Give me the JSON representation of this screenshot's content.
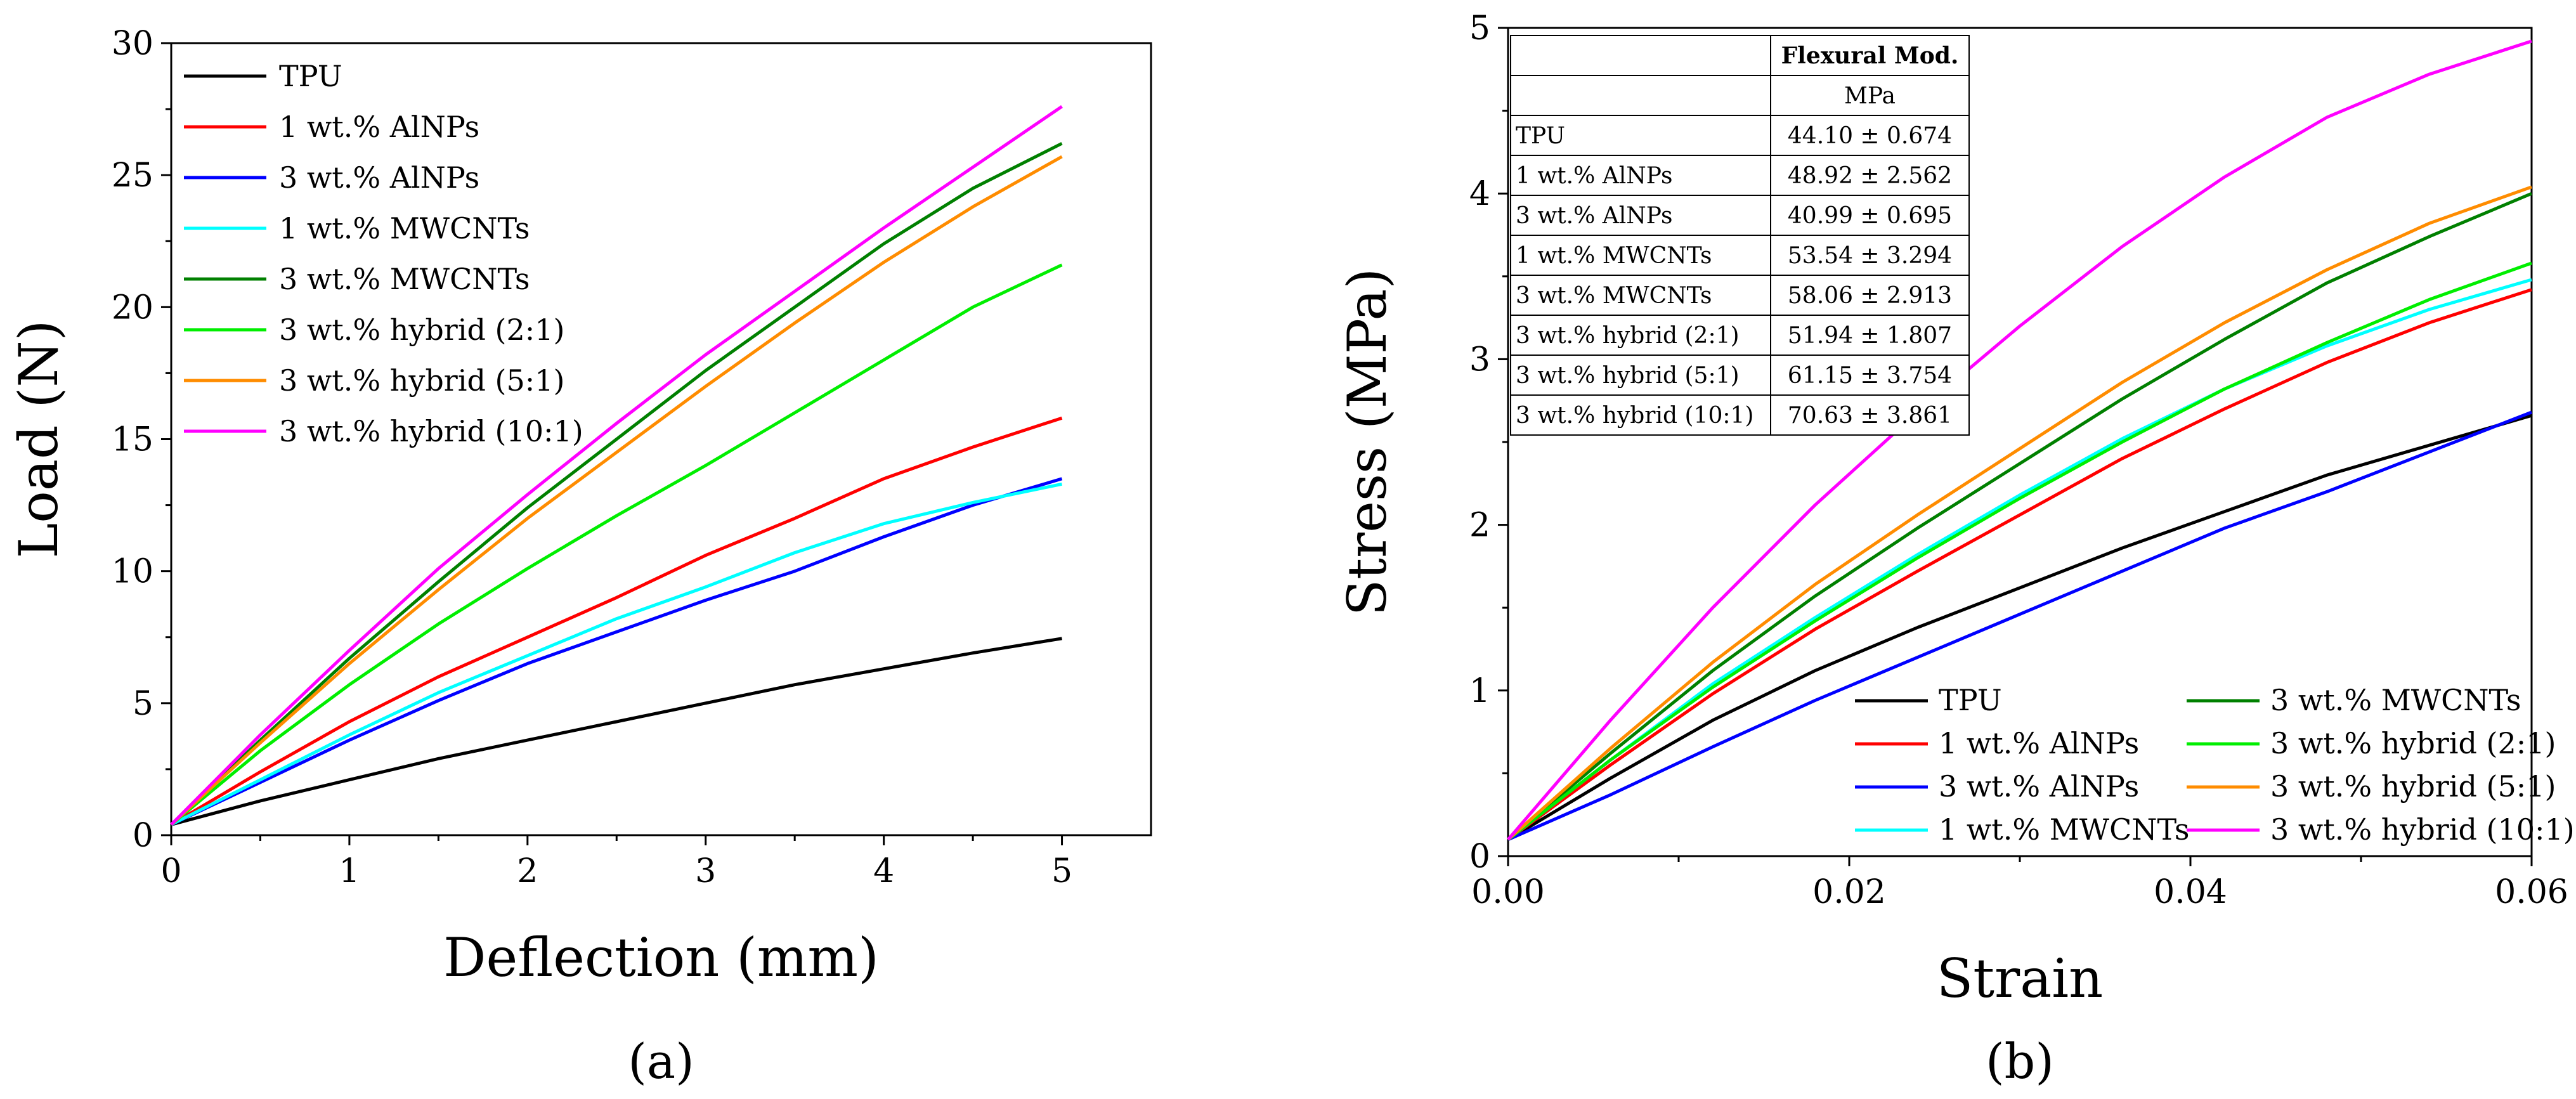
{
  "chart_data": [
    {
      "type": "line",
      "panel_label": "(a)",
      "xlabel": "Deflection (mm)",
      "ylabel": "Load (N)",
      "xlim": [
        0,
        5.5
      ],
      "ylim": [
        0,
        30
      ],
      "xticks": [
        0,
        1,
        2,
        3,
        4,
        5
      ],
      "yticks": [
        0,
        5,
        10,
        15,
        20,
        25,
        30
      ],
      "grid": false,
      "legend_position": "top-left",
      "series": [
        {
          "name": "TPU",
          "color": "#000000",
          "x": [
            0,
            0.5,
            1,
            1.5,
            2,
            2.5,
            3,
            3.5,
            4,
            4.5,
            5
          ],
          "y": [
            0.4,
            1.3,
            2.1,
            2.9,
            3.6,
            4.3,
            5.0,
            5.7,
            6.3,
            6.9,
            7.45
          ]
        },
        {
          "name": "1 wt.% AlNPs",
          "color": "#ff0000",
          "x": [
            0,
            0.5,
            1,
            1.5,
            2,
            2.5,
            3,
            3.5,
            4,
            4.5,
            5
          ],
          "y": [
            0.4,
            2.4,
            4.3,
            6.0,
            7.5,
            9.0,
            10.6,
            12.0,
            13.5,
            14.7,
            15.8
          ]
        },
        {
          "name": "3 wt.% AlNPs",
          "color": "#0000ff",
          "x": [
            0,
            0.5,
            1,
            1.5,
            2,
            2.5,
            3,
            3.5,
            4,
            4.5,
            5
          ],
          "y": [
            0.4,
            2.0,
            3.6,
            5.1,
            6.5,
            7.7,
            8.9,
            10.0,
            11.3,
            12.5,
            13.5
          ]
        },
        {
          "name": "1 wt.% MWCNTs",
          "color": "#00ffff",
          "x": [
            0,
            0.5,
            1,
            1.5,
            2,
            2.5,
            3,
            3.5,
            4,
            4.5,
            5
          ],
          "y": [
            0.4,
            2.1,
            3.8,
            5.4,
            6.8,
            8.2,
            9.4,
            10.7,
            11.8,
            12.6,
            13.3
          ]
        },
        {
          "name": "3 wt.% MWCNTs",
          "color": "#008000",
          "x": [
            0,
            0.5,
            1,
            1.5,
            2,
            2.5,
            3,
            3.5,
            4,
            4.5,
            5
          ],
          "y": [
            0.4,
            3.6,
            6.7,
            9.6,
            12.4,
            15.0,
            17.6,
            20.0,
            22.4,
            24.5,
            26.2
          ]
        },
        {
          "name": "3 wt.% hybrid (2:1)",
          "color": "#00ee00",
          "x": [
            0,
            0.5,
            1,
            1.5,
            2,
            2.5,
            3,
            3.5,
            4,
            4.5,
            5
          ],
          "y": [
            0.4,
            3.2,
            5.7,
            8.0,
            10.1,
            12.1,
            14.0,
            16.0,
            18.0,
            20.0,
            21.6
          ]
        },
        {
          "name": "3 wt.% hybrid (5:1)",
          "color": "#ff8c00",
          "x": [
            0,
            0.5,
            1,
            1.5,
            2,
            2.5,
            3,
            3.5,
            4,
            4.5,
            5
          ],
          "y": [
            0.4,
            3.5,
            6.5,
            9.3,
            12.0,
            14.5,
            17.0,
            19.4,
            21.7,
            23.8,
            25.7
          ]
        },
        {
          "name": "3 wt.% hybrid (10:1)",
          "color": "#ff00ff",
          "x": [
            0,
            0.5,
            1,
            1.5,
            2,
            2.5,
            3,
            3.5,
            4,
            4.5,
            5
          ],
          "y": [
            0.4,
            3.8,
            7.0,
            10.1,
            12.9,
            15.6,
            18.2,
            20.6,
            23.0,
            25.3,
            27.6
          ]
        }
      ]
    },
    {
      "type": "line",
      "panel_label": "(b)",
      "xlabel": "Strain",
      "ylabel": "Stress (MPa)",
      "xlim": [
        0,
        0.06
      ],
      "ylim": [
        0,
        5
      ],
      "xticks": [
        "0.00",
        "0.02",
        "0.04",
        "0.06"
      ],
      "yticks": [
        0,
        1,
        2,
        3,
        4,
        5
      ],
      "grid": false,
      "legend_position": "bottom-right",
      "series": [
        {
          "name": "TPU",
          "color": "#000000",
          "x": [
            0,
            0.006,
            0.012,
            0.018,
            0.024,
            0.03,
            0.036,
            0.042,
            0.048,
            0.054,
            0.06
          ],
          "y": [
            0.1,
            0.47,
            0.82,
            1.12,
            1.38,
            1.62,
            1.86,
            2.08,
            2.3,
            2.48,
            2.66
          ]
        },
        {
          "name": "1 wt.% AlNPs",
          "color": "#ff0000",
          "x": [
            0,
            0.006,
            0.012,
            0.018,
            0.024,
            0.03,
            0.036,
            0.042,
            0.048,
            0.054,
            0.06
          ],
          "y": [
            0.1,
            0.55,
            0.98,
            1.37,
            1.72,
            2.06,
            2.4,
            2.7,
            2.98,
            3.22,
            3.42
          ]
        },
        {
          "name": "3 wt.% AlNPs",
          "color": "#0000ff",
          "x": [
            0,
            0.006,
            0.012,
            0.018,
            0.024,
            0.03,
            0.036,
            0.042,
            0.048,
            0.054,
            0.06
          ],
          "y": [
            0.1,
            0.37,
            0.66,
            0.94,
            1.2,
            1.46,
            1.72,
            1.98,
            2.2,
            2.44,
            2.68
          ]
        },
        {
          "name": "1 wt.% MWCNTs",
          "color": "#00ffff",
          "x": [
            0,
            0.006,
            0.012,
            0.018,
            0.024,
            0.03,
            0.036,
            0.042,
            0.048,
            0.054,
            0.06
          ],
          "y": [
            0.1,
            0.58,
            1.04,
            1.44,
            1.82,
            2.18,
            2.52,
            2.82,
            3.08,
            3.3,
            3.48
          ]
        },
        {
          "name": "3 wt.% MWCNTs",
          "color": "#008000",
          "x": [
            0,
            0.006,
            0.012,
            0.018,
            0.024,
            0.03,
            0.036,
            0.042,
            0.048,
            0.054,
            0.06
          ],
          "y": [
            0.1,
            0.62,
            1.12,
            1.57,
            1.98,
            2.37,
            2.76,
            3.12,
            3.46,
            3.74,
            4.0
          ]
        },
        {
          "name": "3 wt.% hybrid (2:1)",
          "color": "#00ee00",
          "x": [
            0,
            0.006,
            0.012,
            0.018,
            0.024,
            0.03,
            0.036,
            0.042,
            0.048,
            0.054,
            0.06
          ],
          "y": [
            0.1,
            0.58,
            1.02,
            1.42,
            1.8,
            2.16,
            2.5,
            2.82,
            3.1,
            3.36,
            3.58
          ]
        },
        {
          "name": "3 wt.% hybrid (5:1)",
          "color": "#ff8c00",
          "x": [
            0,
            0.006,
            0.012,
            0.018,
            0.024,
            0.03,
            0.036,
            0.042,
            0.048,
            0.054,
            0.06
          ],
          "y": [
            0.1,
            0.65,
            1.17,
            1.64,
            2.06,
            2.46,
            2.86,
            3.22,
            3.54,
            3.82,
            4.04
          ]
        },
        {
          "name": "3 wt.% hybrid (10:1)",
          "color": "#ff00ff",
          "x": [
            0,
            0.006,
            0.012,
            0.018,
            0.024,
            0.03,
            0.036,
            0.042,
            0.048,
            0.054,
            0.06
          ],
          "y": [
            0.1,
            0.82,
            1.5,
            2.12,
            2.68,
            3.2,
            3.68,
            4.1,
            4.46,
            4.72,
            4.92
          ]
        }
      ],
      "inset_table": {
        "header": "Flexural Mod.",
        "unit": "MPa",
        "rows": [
          {
            "label": "TPU",
            "value": "44.10 ± 0.674"
          },
          {
            "label": "1 wt.% AlNPs",
            "value": "48.92 ± 2.562"
          },
          {
            "label": "3 wt.% AlNPs",
            "value": "40.99 ± 0.695"
          },
          {
            "label": "1 wt.% MWCNTs",
            "value": "53.54 ± 3.294"
          },
          {
            "label": "3 wt.% MWCNTs",
            "value": "58.06 ± 2.913"
          },
          {
            "label": "3 wt.% hybrid (2:1)",
            "value": "51.94 ± 1.807"
          },
          {
            "label": "3 wt.% hybrid (5:1)",
            "value": "61.15 ± 3.754"
          },
          {
            "label": "3 wt.% hybrid (10:1)",
            "value": "70.63 ± 3.861"
          }
        ]
      }
    }
  ]
}
